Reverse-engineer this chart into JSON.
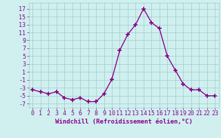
{
  "x": [
    0,
    1,
    2,
    3,
    4,
    5,
    6,
    7,
    8,
    9,
    10,
    11,
    12,
    13,
    14,
    15,
    16,
    17,
    18,
    19,
    20,
    21,
    22,
    23
  ],
  "y": [
    -3.5,
    -4.0,
    -4.5,
    -4.0,
    -5.5,
    -6.0,
    -5.5,
    -6.5,
    -6.5,
    -4.5,
    -0.8,
    6.5,
    10.5,
    13.0,
    17.0,
    13.5,
    12.0,
    5.0,
    1.5,
    -2.0,
    -3.5,
    -3.5,
    -5.0,
    -5.0
  ],
  "line_color": "#880088",
  "marker": "+",
  "marker_size": 4,
  "marker_lw": 1.2,
  "line_width": 1.0,
  "bg_color": "#d0f0f0",
  "grid_color": "#a0c8c8",
  "ylabel_ticks": [
    -7,
    -5,
    -3,
    -1,
    1,
    3,
    5,
    7,
    9,
    11,
    13,
    15,
    17
  ],
  "xlim": [
    -0.5,
    23.5
  ],
  "ylim": [
    -8.0,
    18.5
  ],
  "xticks": [
    0,
    1,
    2,
    3,
    4,
    5,
    6,
    7,
    8,
    9,
    10,
    11,
    12,
    13,
    14,
    15,
    16,
    17,
    18,
    19,
    20,
    21,
    22,
    23
  ],
  "xlabel": "Windchill (Refroidissement éolien,°C)",
  "tick_color": "#880088",
  "xlabel_color": "#880088",
  "xlabel_fontsize": 6.5,
  "tick_fontsize": 6.0,
  "grid_linewidth": 0.5
}
